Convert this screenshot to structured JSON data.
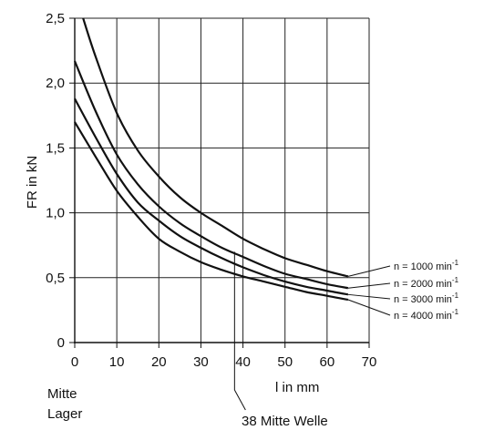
{
  "chart_data": {
    "type": "line",
    "title": "",
    "xlabel": "l in mm",
    "ylabel": "FR in kN",
    "xlim": [
      0,
      70
    ],
    "ylim": [
      0,
      2.5
    ],
    "x_ticks": [
      0,
      10,
      20,
      30,
      40,
      50,
      60,
      70
    ],
    "x_tick_labels": [
      "0",
      "10",
      "20",
      "30",
      "40",
      "50",
      "60",
      "70"
    ],
    "y_ticks": [
      0,
      0.5,
      1.0,
      1.5,
      2.0,
      2.5
    ],
    "y_tick_labels": [
      "0",
      "0,5",
      "1,0",
      "1,5",
      "2,0",
      "2,5"
    ],
    "grid": true,
    "legend_position": "right, beside line ends",
    "series": [
      {
        "name": "n = 1000 min",
        "superscript": "-1",
        "x": [
          2,
          5,
          10,
          15,
          20,
          25,
          30,
          35,
          40,
          45,
          50,
          55,
          60,
          65
        ],
        "y": [
          2.5,
          2.2,
          1.77,
          1.48,
          1.28,
          1.12,
          1.0,
          0.9,
          0.8,
          0.72,
          0.65,
          0.6,
          0.55,
          0.51
        ]
      },
      {
        "name": "n = 2000 min",
        "superscript": "-1",
        "x": [
          0,
          5,
          10,
          15,
          20,
          25,
          30,
          35,
          40,
          45,
          50,
          55,
          60,
          65
        ],
        "y": [
          2.17,
          1.78,
          1.45,
          1.22,
          1.05,
          0.92,
          0.82,
          0.73,
          0.66,
          0.59,
          0.53,
          0.49,
          0.45,
          0.42
        ]
      },
      {
        "name": "n = 3000 min",
        "superscript": "-1",
        "x": [
          0,
          5,
          10,
          15,
          20,
          25,
          30,
          35,
          40,
          45,
          50,
          55,
          60,
          65
        ],
        "y": [
          1.88,
          1.58,
          1.3,
          1.08,
          0.94,
          0.82,
          0.73,
          0.65,
          0.58,
          0.52,
          0.47,
          0.43,
          0.4,
          0.37
        ]
      },
      {
        "name": "n = 4000 min",
        "superscript": "-1",
        "x": [
          0,
          5,
          10,
          15,
          20,
          25,
          30,
          35,
          40,
          45,
          50,
          55,
          60,
          65
        ],
        "y": [
          1.7,
          1.43,
          1.17,
          0.97,
          0.8,
          0.7,
          0.62,
          0.56,
          0.51,
          0.47,
          0.43,
          0.39,
          0.36,
          0.33
        ]
      }
    ],
    "annotations": [
      {
        "text_lines": [
          "Mitte",
          "Lager"
        ],
        "at_x": 0
      },
      {
        "text": "38 Mitte Welle",
        "at_x": 38
      }
    ]
  }
}
